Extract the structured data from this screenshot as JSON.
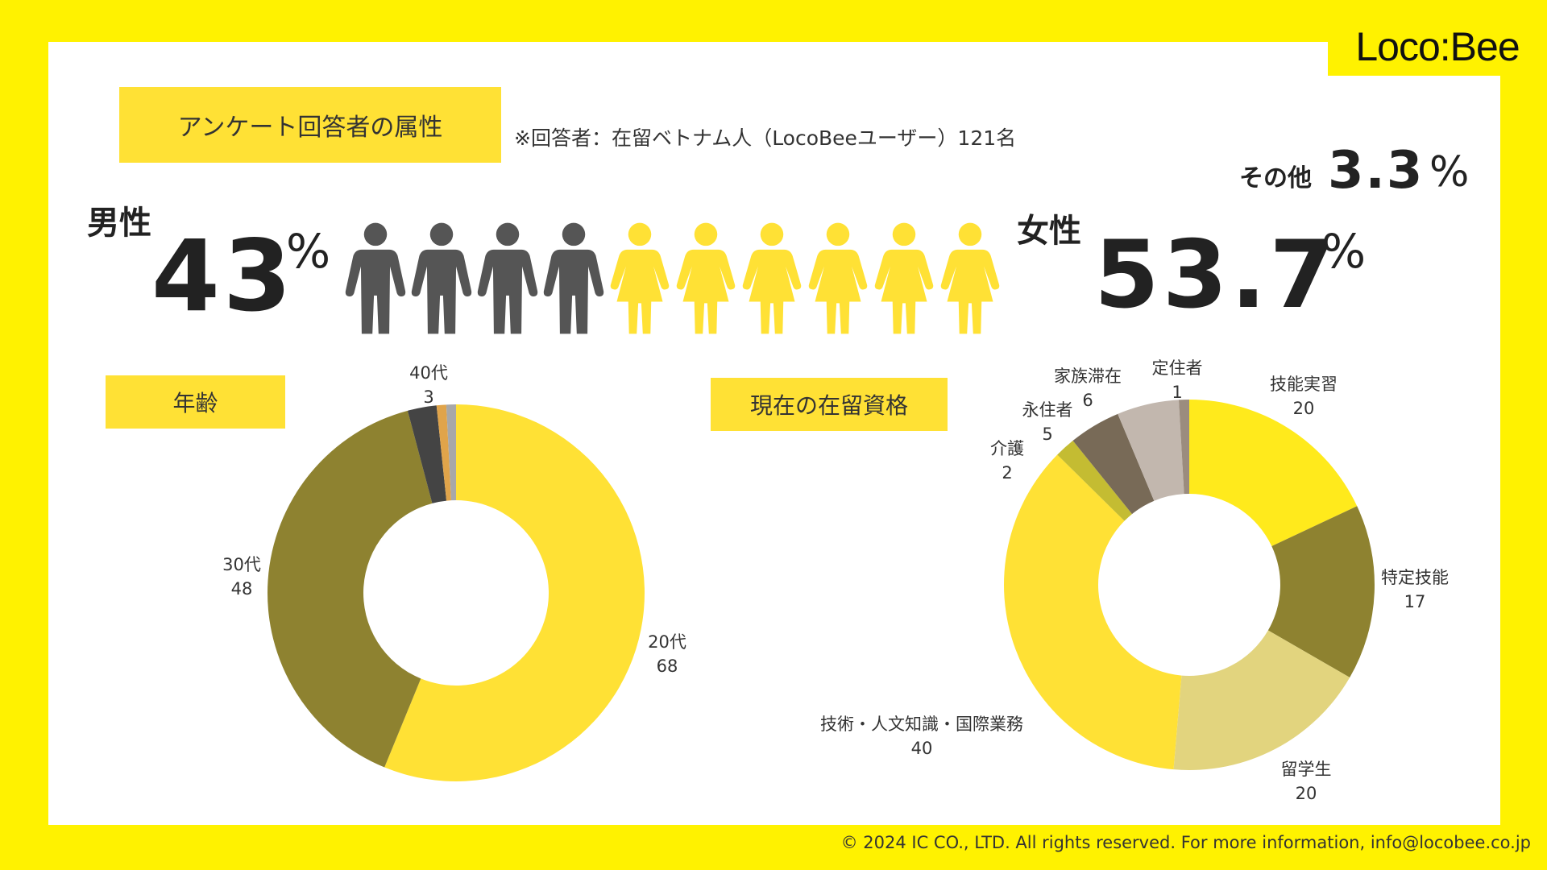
{
  "brand": {
    "logo_text": "Loco:Bee"
  },
  "header": {
    "tag": "アンケート回答者の属性",
    "note": "※回答者：在留ベトナム人（LocoBeeユーザー）121名"
  },
  "gender": {
    "male_label": "男性",
    "male_value": "43",
    "female_label": "女性",
    "female_value": "53.7",
    "other_label": "その他",
    "other_value": "3.3",
    "percent_sign": "%",
    "male_icons": 4,
    "female_icons": 6
  },
  "colors": {
    "page_background": "#FFF200",
    "tag_background": "#FFE135",
    "male_icon": "#555555",
    "female_icon": "#FFE135"
  },
  "age_section": {
    "tag": "年齢"
  },
  "status_section": {
    "tag": "現在の在留資格"
  },
  "footer": {
    "text": "© 2024 IC CO., LTD. All rights reserved. For more information, info@locobee.co.jp"
  },
  "chart_data": [
    {
      "type": "pie",
      "variant": "donut",
      "title": "年齢",
      "categories": [
        "20代",
        "30代",
        "40代",
        "",
        ""
      ],
      "values": [
        68,
        48,
        3,
        1,
        1
      ],
      "value_labels": [
        "68",
        "48",
        "3",
        "",
        ""
      ],
      "colors": [
        "#FFE135",
        "#8E8230",
        "#444444",
        "#E0A44A",
        "#A8A8A8"
      ],
      "start_angle_deg": 0
    },
    {
      "type": "pie",
      "variant": "donut",
      "title": "現在の在留資格",
      "categories": [
        "技能実習",
        "特定技能",
        "留学生",
        "技術・人文知識・国際業務",
        "介護",
        "永住者",
        "家族滞在",
        "定住者"
      ],
      "values": [
        20,
        17,
        20,
        40,
        2,
        5,
        6,
        1
      ],
      "value_labels": [
        "20",
        "17",
        "20",
        "40",
        "2",
        "5",
        "6",
        "1"
      ],
      "colors": [
        "#FFEA1C",
        "#8E8230",
        "#E2D47E",
        "#FFE135",
        "#C4BC32",
        "#786A57",
        "#C2B7AE",
        "#9B8C7E",
        "#D8D0A0"
      ],
      "start_angle_deg": 0
    }
  ]
}
